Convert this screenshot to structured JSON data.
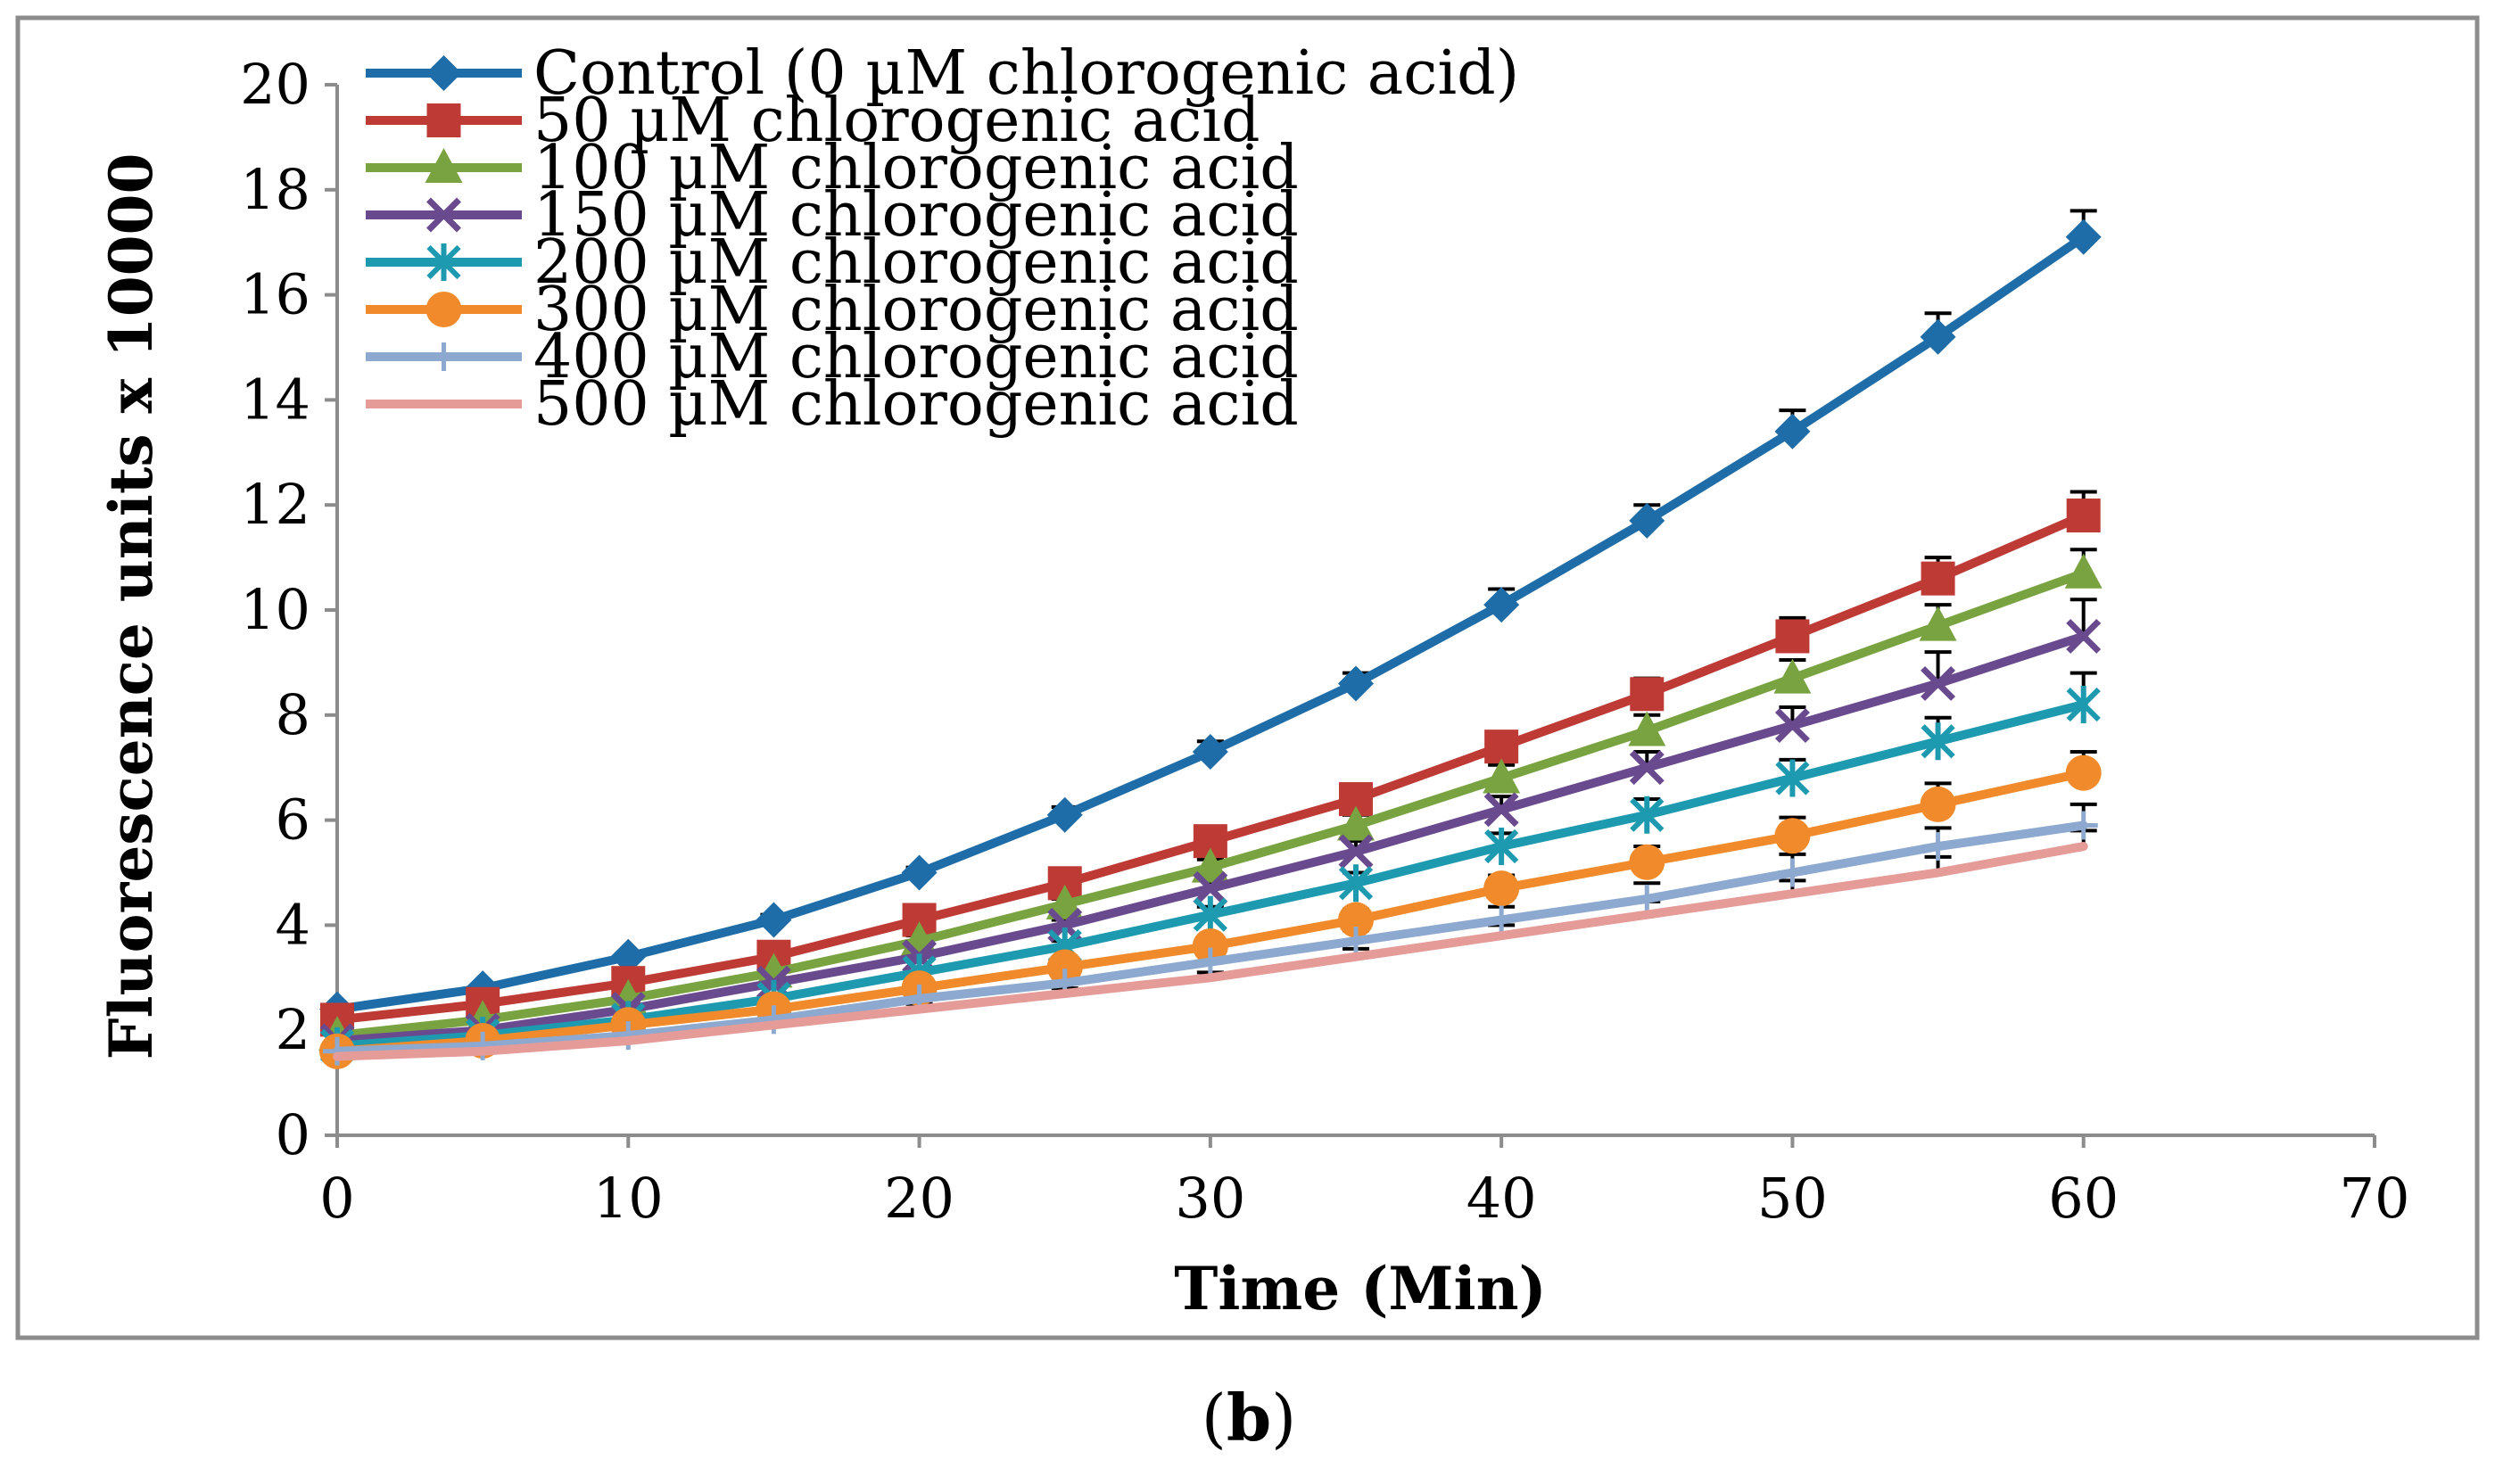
{
  "chart_data": {
    "type": "line",
    "xlabel": "Time (Min)",
    "ylabel": "Fluorescence units   x 10000",
    "xlim": [
      0,
      70
    ],
    "ylim": [
      0,
      20
    ],
    "xticks": [
      0,
      10,
      20,
      30,
      40,
      50,
      60,
      70
    ],
    "yticks": [
      0,
      2,
      4,
      6,
      8,
      10,
      12,
      14,
      16,
      18,
      20
    ],
    "grid": false,
    "legend_position": "top-left",
    "x": [
      0,
      5,
      10,
      15,
      20,
      25,
      30,
      35,
      40,
      45,
      50,
      55,
      60
    ],
    "series": [
      {
        "name": "Control (0 µM chlorogenic acid)",
        "color": "#1F6DA8",
        "marker": "diamond",
        "values": [
          2.4,
          2.8,
          3.4,
          4.1,
          5.0,
          6.1,
          7.3,
          8.6,
          10.1,
          11.7,
          13.4,
          15.2,
          17.1
        ],
        "errors": [
          0,
          0,
          0,
          0.1,
          0.1,
          0.15,
          0.2,
          0.2,
          0.3,
          0.3,
          0.4,
          0.45,
          0.5
        ]
      },
      {
        "name": "50 µM chlorogenic acid",
        "color": "#BE3A34",
        "marker": "square",
        "values": [
          2.2,
          2.5,
          2.9,
          3.4,
          4.1,
          4.8,
          5.6,
          6.4,
          7.4,
          8.4,
          9.5,
          10.6,
          11.8
        ],
        "errors": [
          0,
          0,
          0,
          0.1,
          0.1,
          0.1,
          0.15,
          0.2,
          0.25,
          0.3,
          0.35,
          0.4,
          0.45
        ]
      },
      {
        "name": "100 µM chlorogenic acid",
        "color": "#78A340",
        "marker": "triangle",
        "values": [
          1.9,
          2.2,
          2.6,
          3.1,
          3.7,
          4.4,
          5.1,
          5.9,
          6.8,
          7.7,
          8.7,
          9.7,
          10.7
        ],
        "errors": [
          0,
          0,
          0,
          0.1,
          0.1,
          0.1,
          0.15,
          0.2,
          0.25,
          0.3,
          0.35,
          0.4,
          0.45
        ]
      },
      {
        "name": "150 µM chlorogenic acid",
        "color": "#6A4A8E",
        "marker": "x",
        "values": [
          1.8,
          2.0,
          2.4,
          2.9,
          3.4,
          4.0,
          4.7,
          5.4,
          6.2,
          7.0,
          7.8,
          8.6,
          9.5
        ],
        "errors": [
          0,
          0,
          0,
          0.1,
          0.1,
          0.1,
          0.15,
          0.2,
          0.25,
          0.3,
          0.35,
          0.6,
          0.7
        ]
      },
      {
        "name": "200 µM chlorogenic acid",
        "color": "#1E9AB0",
        "marker": "asterisk",
        "values": [
          1.7,
          1.9,
          2.2,
          2.6,
          3.1,
          3.6,
          4.2,
          4.8,
          5.5,
          6.1,
          6.8,
          7.5,
          8.2
        ],
        "errors": [
          0,
          0,
          0,
          0.1,
          0.1,
          0.1,
          0.15,
          0.2,
          0.25,
          0.3,
          0.35,
          0.45,
          0.6
        ]
      },
      {
        "name": "300 µM chlorogenic acid",
        "color": "#F08A2A",
        "marker": "circle",
        "values": [
          1.6,
          1.8,
          2.1,
          2.4,
          2.8,
          3.2,
          3.6,
          4.1,
          4.7,
          5.2,
          5.7,
          6.3,
          6.9
        ],
        "errors": [
          0,
          0,
          0,
          0.1,
          0.1,
          0.1,
          0.15,
          0.2,
          0.25,
          0.3,
          0.35,
          0.4,
          0.4
        ]
      },
      {
        "name": "400 µM chlorogenic acid",
        "color": "#8DA9D0",
        "marker": "plus",
        "values": [
          1.6,
          1.7,
          1.9,
          2.2,
          2.6,
          2.9,
          3.3,
          3.7,
          4.1,
          4.5,
          5.0,
          5.5,
          5.9
        ],
        "errors": [
          0,
          0,
          0,
          0.1,
          0.1,
          0.1,
          0.15,
          0.2,
          0.25,
          0.3,
          0.35,
          0.35,
          0.4
        ]
      },
      {
        "name": "500 µM chlorogenic acid",
        "color": "#E59B98",
        "marker": "none",
        "values": [
          1.5,
          1.6,
          1.8,
          2.1,
          2.4,
          2.7,
          3.0,
          3.4,
          3.8,
          4.2,
          4.6,
          5.0,
          5.5
        ],
        "errors": [
          0,
          0,
          0,
          0,
          0.1,
          0.1,
          0.1,
          0.15,
          0.2,
          0.25,
          0.25,
          0.3,
          0.3
        ]
      }
    ]
  },
  "caption": {
    "open": "(",
    "letter": "b",
    "close": ")"
  }
}
